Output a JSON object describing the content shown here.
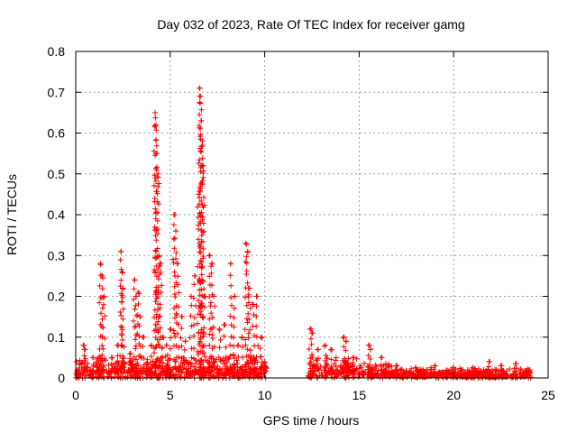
{
  "chart_data": {
    "type": "scatter",
    "title": "Day 032 of 2023, Rate Of TEC Index for receiver gamg",
    "xlabel": "GPS time / hours",
    "ylabel": "ROTI / TECUs",
    "xlim": [
      0,
      25
    ],
    "ylim": [
      0,
      0.8
    ],
    "x_ticks": [
      0,
      5,
      10,
      15,
      20,
      25
    ],
    "x_tick_labels": [
      "0",
      "5",
      "10",
      "15",
      "20",
      "25"
    ],
    "y_ticks": [
      0,
      0.1,
      0.2,
      0.3,
      0.4,
      0.5,
      0.6,
      0.7,
      0.8
    ],
    "y_tick_labels": [
      "0",
      "0.1",
      "0.2",
      "0.3",
      "0.4",
      "0.5",
      "0.6",
      "0.7",
      "0.8"
    ],
    "grid": true,
    "marker": "+",
    "color": "#ff0000",
    "data_gap": [
      10.1,
      12.3
    ],
    "peaks": [
      {
        "x": 0.2,
        "y": 0.02
      },
      {
        "x": 0.4,
        "y": 0.08
      },
      {
        "x": 0.5,
        "y": 0.07
      },
      {
        "x": 0.9,
        "y": 0.05
      },
      {
        "x": 1.3,
        "y": 0.28
      },
      {
        "x": 1.4,
        "y": 0.25
      },
      {
        "x": 1.5,
        "y": 0.2
      },
      {
        "x": 1.9,
        "y": 0.05
      },
      {
        "x": 2.2,
        "y": 0.08
      },
      {
        "x": 2.4,
        "y": 0.31
      },
      {
        "x": 2.45,
        "y": 0.26
      },
      {
        "x": 2.5,
        "y": 0.22
      },
      {
        "x": 2.9,
        "y": 0.06
      },
      {
        "x": 3.1,
        "y": 0.24
      },
      {
        "x": 3.2,
        "y": 0.2
      },
      {
        "x": 3.3,
        "y": 0.21
      },
      {
        "x": 3.4,
        "y": 0.15
      },
      {
        "x": 3.6,
        "y": 0.1
      },
      {
        "x": 4.0,
        "y": 0.08
      },
      {
        "x": 4.2,
        "y": 0.65
      },
      {
        "x": 4.25,
        "y": 0.62
      },
      {
        "x": 4.3,
        "y": 0.55
      },
      {
        "x": 4.35,
        "y": 0.5
      },
      {
        "x": 4.4,
        "y": 0.3
      },
      {
        "x": 4.5,
        "y": 0.28
      },
      {
        "x": 4.6,
        "y": 0.1
      },
      {
        "x": 4.8,
        "y": 0.08
      },
      {
        "x": 5.0,
        "y": 0.12
      },
      {
        "x": 5.2,
        "y": 0.4
      },
      {
        "x": 5.3,
        "y": 0.36
      },
      {
        "x": 5.4,
        "y": 0.28
      },
      {
        "x": 5.6,
        "y": 0.15
      },
      {
        "x": 5.8,
        "y": 0.09
      },
      {
        "x": 6.1,
        "y": 0.2
      },
      {
        "x": 6.3,
        "y": 0.25
      },
      {
        "x": 6.5,
        "y": 0.45
      },
      {
        "x": 6.55,
        "y": 0.71
      },
      {
        "x": 6.6,
        "y": 0.69
      },
      {
        "x": 6.65,
        "y": 0.63
      },
      {
        "x": 6.7,
        "y": 0.57
      },
      {
        "x": 6.75,
        "y": 0.52
      },
      {
        "x": 6.8,
        "y": 0.2
      },
      {
        "x": 7.1,
        "y": 0.3
      },
      {
        "x": 7.2,
        "y": 0.28
      },
      {
        "x": 7.3,
        "y": 0.2
      },
      {
        "x": 7.6,
        "y": 0.12
      },
      {
        "x": 7.9,
        "y": 0.13
      },
      {
        "x": 8.2,
        "y": 0.28
      },
      {
        "x": 8.4,
        "y": 0.2
      },
      {
        "x": 8.6,
        "y": 0.08
      },
      {
        "x": 8.8,
        "y": 0.1
      },
      {
        "x": 9.0,
        "y": 0.33
      },
      {
        "x": 9.1,
        "y": 0.31
      },
      {
        "x": 9.2,
        "y": 0.22
      },
      {
        "x": 9.4,
        "y": 0.18
      },
      {
        "x": 9.6,
        "y": 0.2
      },
      {
        "x": 9.8,
        "y": 0.1
      },
      {
        "x": 10.0,
        "y": 0.03
      },
      {
        "x": 12.4,
        "y": 0.12
      },
      {
        "x": 12.5,
        "y": 0.11
      },
      {
        "x": 12.8,
        "y": 0.07
      },
      {
        "x": 13.2,
        "y": 0.08
      },
      {
        "x": 13.5,
        "y": 0.07
      },
      {
        "x": 14.2,
        "y": 0.1
      },
      {
        "x": 14.3,
        "y": 0.09
      },
      {
        "x": 14.7,
        "y": 0.05
      },
      {
        "x": 15.5,
        "y": 0.08
      },
      {
        "x": 15.6,
        "y": 0.07
      },
      {
        "x": 16.2,
        "y": 0.05
      },
      {
        "x": 17.0,
        "y": 0.03
      },
      {
        "x": 18.0,
        "y": 0.025
      },
      {
        "x": 19.0,
        "y": 0.03
      },
      {
        "x": 20.0,
        "y": 0.025
      },
      {
        "x": 21.0,
        "y": 0.025
      },
      {
        "x": 21.9,
        "y": 0.04
      },
      {
        "x": 22.5,
        "y": 0.03
      },
      {
        "x": 23.3,
        "y": 0.035
      },
      {
        "x": 24.0,
        "y": 0.02
      }
    ],
    "baseline": [
      {
        "range": [
          0.0,
          10.1
        ],
        "level": 0.02,
        "spread": 0.04
      },
      {
        "range": [
          12.3,
          15.0
        ],
        "level": 0.02,
        "spread": 0.035
      },
      {
        "range": [
          15.0,
          17.0
        ],
        "level": 0.012,
        "spread": 0.025
      },
      {
        "range": [
          17.0,
          24.1
        ],
        "level": 0.008,
        "spread": 0.018
      }
    ]
  }
}
